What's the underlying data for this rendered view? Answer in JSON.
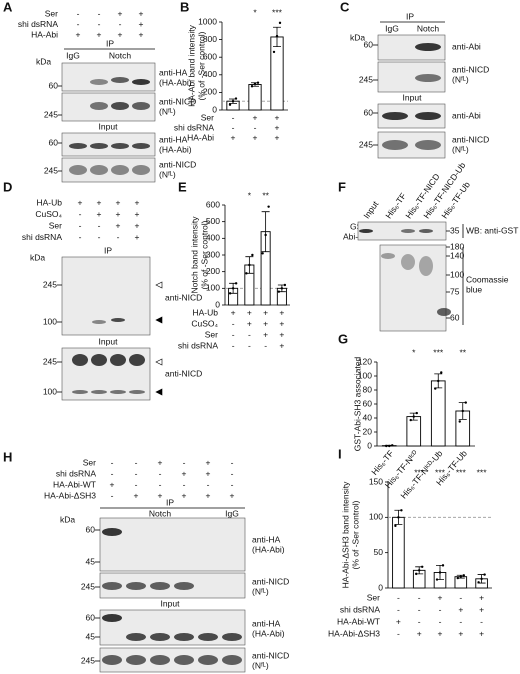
{
  "blots": {
    "A": {
      "label": "A",
      "conditions": [
        {
          "name": "Ser",
          "marks": [
            "-",
            "-",
            "+",
            "+"
          ]
        },
        {
          "name": "shi dsRNA",
          "marks": [
            "-",
            "-",
            "-",
            "+"
          ]
        },
        {
          "name": "HA-Abi",
          "marks": [
            "+",
            "+",
            "+",
            "+"
          ]
        }
      ],
      "ip": "IP",
      "lanes": [
        "IgG",
        "Notch"
      ],
      "input": "Input",
      "kda": "kDa",
      "markers": [
        "60",
        "245",
        "60",
        "245"
      ],
      "antibodies": [
        "anti-HA",
        "(HA-Abi)",
        "anti-NICD",
        "(Nᶠᴸ)",
        "anti-HA",
        "(HA-Abi)",
        "anti-NICD",
        "(Nᶠᴸ)"
      ]
    },
    "C": {
      "label": "C",
      "ip": "IP",
      "lanes": [
        "IgG",
        "Notch"
      ],
      "input": "Input",
      "kda": "kDa",
      "markers": [
        "60",
        "245",
        "60",
        "245"
      ],
      "antibodies": [
        "anti-Abi",
        "anti-NICD",
        "(Nᶠᴸ)",
        "anti-Abi",
        "anti-NICD",
        "(Nᶠᴸ)"
      ]
    },
    "D": {
      "label": "D",
      "conditions": [
        {
          "name": "HA-Ub",
          "marks": [
            "+",
            "+",
            "+",
            "+"
          ]
        },
        {
          "name": "CuSO₄",
          "marks": [
            "-",
            "+",
            "+",
            "+"
          ]
        },
        {
          "name": "Ser",
          "marks": [
            "-",
            "-",
            "+",
            "+"
          ]
        },
        {
          "name": "shi dsRNA",
          "marks": [
            "-",
            "-",
            "-",
            "+"
          ]
        }
      ],
      "ip": "IP",
      "input": "Input",
      "kda": "kDa",
      "markers": [
        "245",
        "100",
        "245",
        "100"
      ],
      "antibodies": [
        "anti-NICD",
        "anti-NICD"
      ]
    },
    "F": {
      "label": "F",
      "lanes": [
        "Input",
        "His₆-TF",
        "His₆-TF-NICD",
        "His₆-TF-NICD-Ub",
        "His₆-TF-Ub"
      ],
      "protein": [
        "GST-",
        "Abi-SH3"
      ],
      "markers": [
        "35",
        "180",
        "140",
        "100",
        "75",
        "60"
      ],
      "wb": "WB: anti-GST",
      "stain": [
        "Coomassie",
        "blue"
      ]
    },
    "H": {
      "label": "H",
      "conditions": [
        {
          "name": "Ser",
          "marks": [
            "-",
            "-",
            "+",
            "-",
            "+",
            "-"
          ]
        },
        {
          "name": "shi dsRNA",
          "marks": [
            "-",
            "-",
            "-",
            "+",
            "+",
            "-"
          ]
        },
        {
          "name": "HA-Abi-WT",
          "marks": [
            "+",
            "-",
            "-",
            "-",
            "-",
            "-"
          ]
        },
        {
          "name": "HA-Abi-ΔSH3",
          "marks": [
            "-",
            "+",
            "+",
            "+",
            "+",
            "+"
          ]
        }
      ],
      "ip": "IP",
      "lanes": [
        "Notch",
        "IgG"
      ],
      "input": "Input",
      "kda": "kDa",
      "markers": [
        "60",
        "45",
        "245",
        "60",
        "45",
        "245"
      ],
      "antibodies": [
        "anti-HA",
        "(HA-Abi)",
        "anti-NICD",
        "(Nᶠᴸ)",
        "anti-HA",
        "(HA-Abi)",
        "anti-NICD",
        "(Nᶠᴸ)"
      ]
    }
  },
  "chart_data": [
    {
      "type": "bar",
      "label": "B",
      "y_label": [
        "HA-Abi band intensity",
        "(% of -Ser control)"
      ],
      "values": [
        100,
        290,
        830
      ],
      "errors": [
        25,
        20,
        110
      ],
      "points": [
        [
          60,
          100,
          130
        ],
        [
          270,
          300,
          310
        ],
        [
          660,
          840,
          990
        ]
      ],
      "significance": [
        null,
        "*",
        "***"
      ],
      "reference_line": 100,
      "color": "#ffffff",
      "edge_color": "#000000",
      "ylim": [
        0,
        1000
      ],
      "yticks": [
        0,
        200,
        400,
        600,
        800,
        1000
      ],
      "conditions": [
        {
          "name": "Ser",
          "marks": [
            "-",
            "+",
            "+"
          ]
        },
        {
          "name": "shi dsRNA",
          "marks": [
            "-",
            "-",
            "+"
          ]
        },
        {
          "name": "HA-Abi",
          "marks": [
            "+",
            "+",
            "+"
          ]
        }
      ]
    },
    {
      "type": "bar",
      "label": "E",
      "y_label": [
        "Notch band intensity",
        "(% of -Ser control)"
      ],
      "values": [
        100,
        240,
        440,
        100
      ],
      "errors": [
        30,
        50,
        120,
        20
      ],
      "points": [
        [
          70,
          100,
          130
        ],
        [
          190,
          240,
          300
        ],
        [
          310,
          420,
          590
        ],
        [
          80,
          100,
          120
        ]
      ],
      "significance": [
        null,
        "*",
        "**",
        null
      ],
      "reference_line": 100,
      "color": "#ffffff",
      "edge_color": "#000000",
      "ylim": [
        0,
        600
      ],
      "yticks": [
        0,
        100,
        200,
        300,
        400,
        500,
        600
      ],
      "conditions": [
        {
          "name": "HA-Ub",
          "marks": [
            "+",
            "+",
            "+",
            "+"
          ]
        },
        {
          "name": "CuSO₄",
          "marks": [
            "-",
            "+",
            "+",
            "+"
          ]
        },
        {
          "name": "Ser",
          "marks": [
            "-",
            "-",
            "+",
            "+"
          ]
        },
        {
          "name": "shi dsRNA",
          "marks": [
            "-",
            "-",
            "-",
            "+"
          ]
        }
      ]
    },
    {
      "type": "bar",
      "label": "G",
      "y_label": [
        "GST-Abi-SH3 associated"
      ],
      "categories": [
        "His₆-TF",
        "His₆-TF-Nᴵᶜᴰ",
        "His₆-TF-Nᴵᶜᴰ-Ub",
        "His₆-TF-Ub"
      ],
      "values": [
        0.5,
        42,
        93,
        50
      ],
      "errors": [
        0.5,
        5,
        10,
        12
      ],
      "points": [
        [
          0,
          0,
          1
        ],
        [
          37,
          42,
          47
        ],
        [
          82,
          93,
          105
        ],
        [
          35,
          50,
          62
        ]
      ],
      "significance": [
        null,
        "*",
        "***",
        "**"
      ],
      "color": "#ffffff",
      "edge_color": "#000000",
      "ylim": [
        0,
        120
      ],
      "yticks": [
        0,
        20,
        40,
        60,
        80,
        100,
        120
      ]
    },
    {
      "type": "bar",
      "label": "I",
      "y_label": [
        "HA-Abi-ΔSH3 band intensity",
        "(% of -Ser control)"
      ],
      "values": [
        100,
        25,
        22,
        16,
        13
      ],
      "errors": [
        10,
        5,
        10,
        2,
        6
      ],
      "points": [
        [
          88,
          100,
          110
        ],
        [
          20,
          25,
          30
        ],
        [
          12,
          22,
          32
        ],
        [
          14,
          16,
          18
        ],
        [
          8,
          13,
          19
        ]
      ],
      "significance": [
        null,
        "***",
        "***",
        "***",
        "***"
      ],
      "reference_line": 100,
      "color": "#ffffff",
      "edge_color": "#000000",
      "ylim": [
        0,
        150
      ],
      "yticks": [
        0,
        50,
        100,
        150
      ],
      "conditions": [
        {
          "name": "Ser",
          "marks": [
            "-",
            "-",
            "+",
            "-",
            "+"
          ]
        },
        {
          "name": "shi dsRNA",
          "marks": [
            "-",
            "-",
            "-",
            "+",
            "+"
          ]
        },
        {
          "name": "HA-Abi-WT",
          "marks": [
            "+",
            "-",
            "-",
            "-",
            "-"
          ]
        },
        {
          "name": "HA-Abi-ΔSH3",
          "marks": [
            "-",
            "+",
            "+",
            "+",
            "+"
          ]
        }
      ]
    }
  ]
}
